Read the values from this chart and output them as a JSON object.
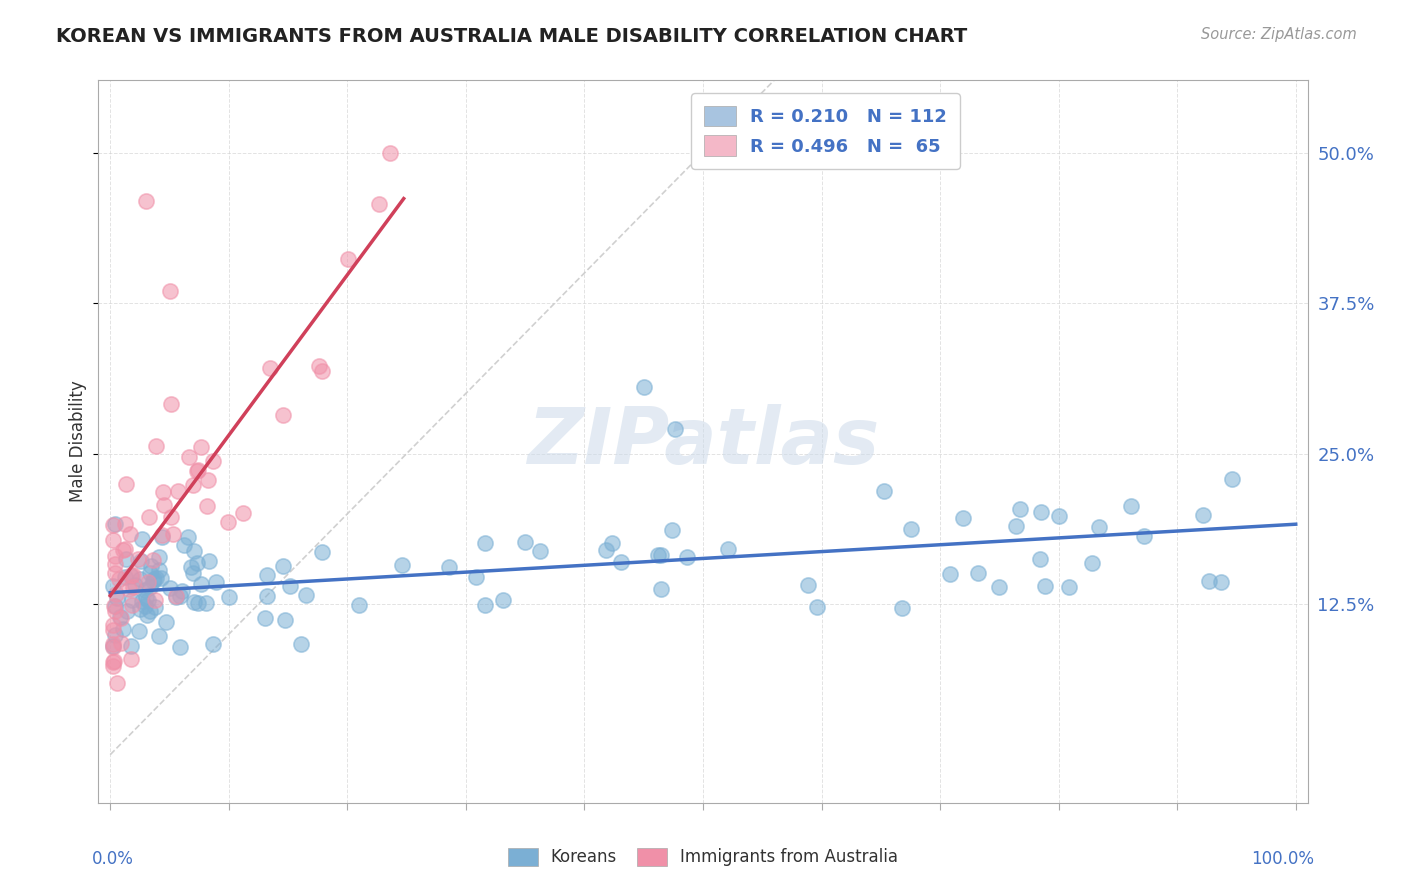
{
  "title": "KOREAN VS IMMIGRANTS FROM AUSTRALIA MALE DISABILITY CORRELATION CHART",
  "source": "Source: ZipAtlas.com",
  "ylabel": "Male Disability",
  "yticks": [
    "12.5%",
    "25.0%",
    "37.5%",
    "50.0%"
  ],
  "ytick_vals": [
    0.125,
    0.25,
    0.375,
    0.5
  ],
  "legend1_color": "#a8c4e0",
  "legend2_color": "#f4b8c8",
  "scatter1_color": "#7bafd4",
  "scatter2_color": "#f090a8",
  "trendline1_color": "#4472c4",
  "trendline2_color": "#d0405a",
  "diagonal_color": "#c8c8c8",
  "watermark": "ZIPatlas",
  "bottom_legend": [
    "Koreans",
    "Immigrants from Australia"
  ]
}
